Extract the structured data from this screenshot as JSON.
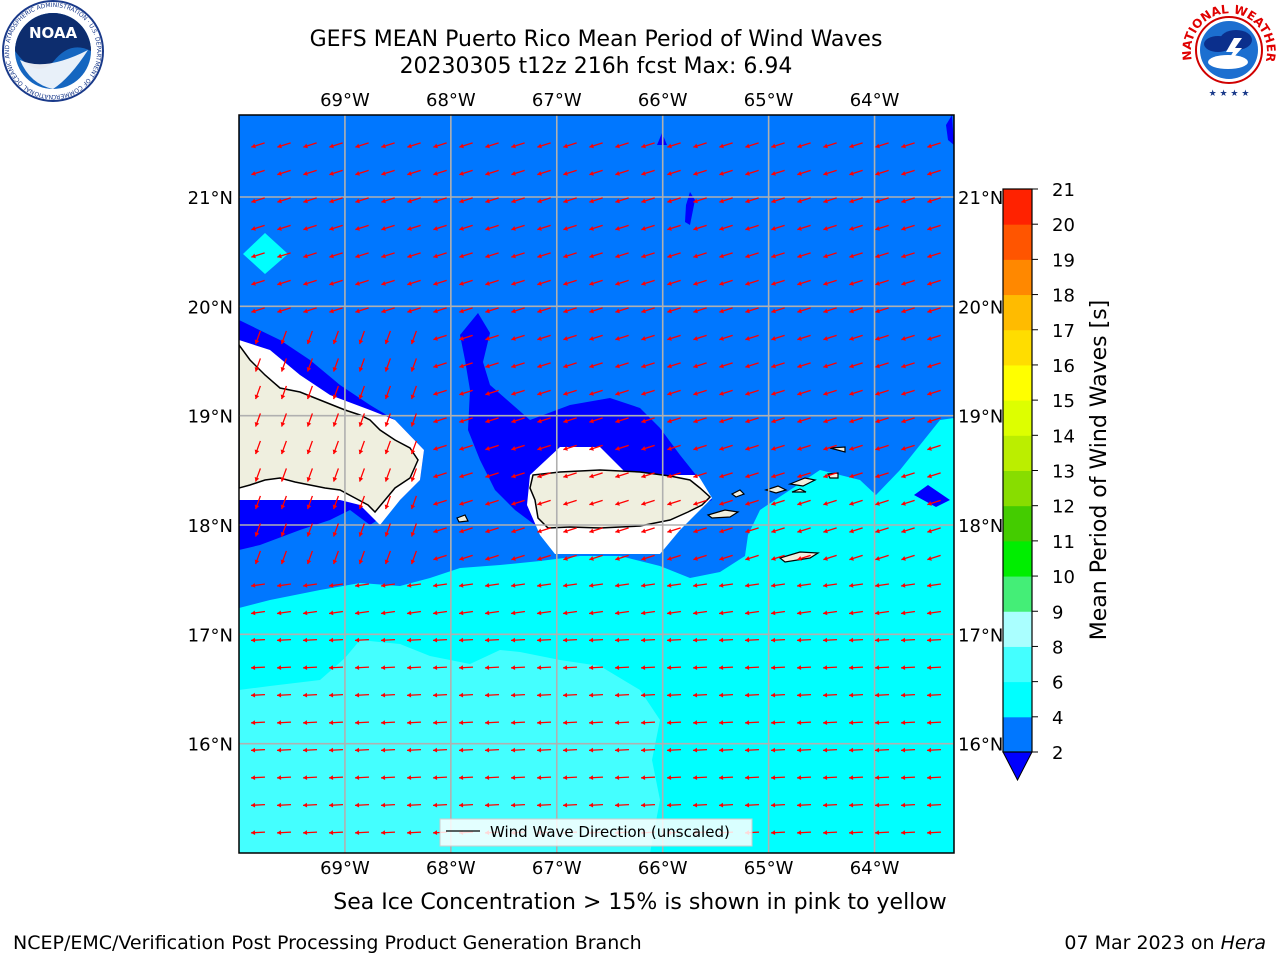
{
  "title": {
    "line1": "GEFS MEAN Puerto Rico Mean Period of Wind Waves",
    "line2": "20230305 t12z 216h fcst   Max: 6.94"
  },
  "map": {
    "lon_ticks": [
      "69°W",
      "68°W",
      "67°W",
      "66°W",
      "65°W",
      "64°W"
    ],
    "lat_ticks": [
      "21°N",
      "20°N",
      "19°N",
      "18°N",
      "17°N",
      "16°N"
    ],
    "legend_label": "Wind Wave Direction (unscaled)",
    "arrow_color": "#ff0000",
    "land_color": "#efefdf",
    "extent": {
      "lon": [
        -70.0,
        -63.25
      ],
      "lat": [
        15.0,
        21.75
      ]
    }
  },
  "colorbar": {
    "label": "Mean Period of Wind Waves [s]",
    "ticks": [
      "2",
      "4",
      "6",
      "8",
      "9",
      "10",
      "11",
      "12",
      "13",
      "14",
      "15",
      "16",
      "17",
      "18",
      "19",
      "20",
      "21"
    ],
    "colors": [
      "#0000ff",
      "#0077ff",
      "#00ffff",
      "#44ffff",
      "#aaffff",
      "#44ee77",
      "#00ee00",
      "#44cc00",
      "#88dd00",
      "#bbee00",
      "#ddff00",
      "#ffff00",
      "#ffdd00",
      "#ffbb00",
      "#ff8800",
      "#ff5500",
      "#ff2200",
      "#ff0000"
    ],
    "field_colors": {
      "lt2": "#0000ff",
      "c2_4": "#0077ff",
      "c4_6": "#00ffff",
      "c6_8": "#44ffff"
    }
  },
  "caption": "Sea Ice Concentration > 15% is shown in pink to yellow",
  "footer": {
    "left": "NCEP/EMC/Verification Post Processing Product Generation Branch",
    "right_date": "07 Mar 2023 on ",
    "right_host": "Hera"
  },
  "logos": {
    "noaa": {
      "text": "NOAA",
      "ring_text": "NATIONAL OCEANIC AND ATMOSPHERIC ADMINISTRATION · U.S. DEPARTMENT OF COMMERCE"
    },
    "nws": {
      "ring_text": "NATIONAL WEATHER SERVICE"
    }
  }
}
